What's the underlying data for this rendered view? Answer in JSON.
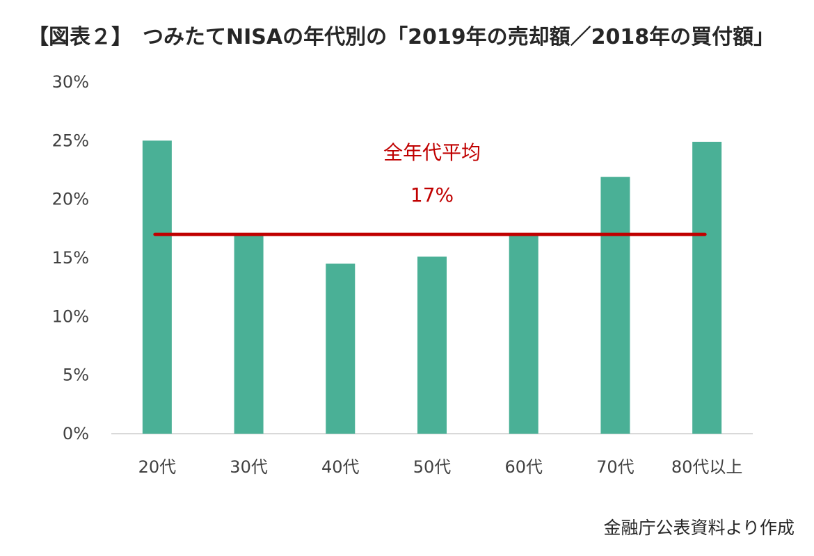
{
  "title": "【図表２】　つみたてNISAの年代別の「2019年の売却額／2018年の買付額」",
  "source": "金融庁公表資料より作成",
  "colors": {
    "bar": "#4ab096",
    "average_line": "#c00000",
    "axis": "#d9d9d9"
  },
  "chart_data": {
    "type": "bar",
    "categories": [
      "20代",
      "30代",
      "40代",
      "50代",
      "60代",
      "70代",
      "80代以上"
    ],
    "values": [
      25,
      16.9,
      14.5,
      15.1,
      16.9,
      21.9,
      24.9
    ],
    "ylim": [
      0,
      30
    ],
    "yticks": [
      0,
      5,
      10,
      15,
      20,
      25,
      30
    ],
    "ytick_labels": [
      "0%",
      "5%",
      "10%",
      "15%",
      "20%",
      "25%",
      "30%"
    ],
    "unit": "%",
    "grid": false,
    "average": {
      "label": "全年代平均",
      "value": 17,
      "value_label": "17%"
    }
  }
}
